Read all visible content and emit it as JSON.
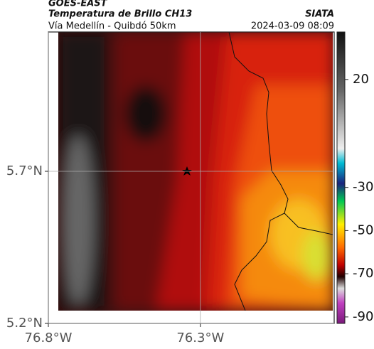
{
  "header": {
    "satellite": "GOES-EAST",
    "title": "Temperatura de Brillo CH13",
    "source": "SIATA",
    "subtitle": "Vía Medellín - Quibdó 50km",
    "datetime": "2024-03-09 08:09"
  },
  "map": {
    "xlim": [
      -76.8,
      -75.86
    ],
    "ylim": [
      5.2,
      6.158
    ],
    "xticks": [
      {
        "value": -76.8,
        "label": "76.8°W"
      },
      {
        "value": -76.3,
        "label": "76.3°W"
      }
    ],
    "yticks": [
      {
        "value": 5.2,
        "label": "5.2°N"
      },
      {
        "value": 5.7,
        "label": "5.7°N"
      }
    ],
    "grid": true
  },
  "colorbar": {
    "lim": [
      -93,
      42
    ],
    "ticks": [
      20,
      -30,
      -50,
      -70,
      -90
    ]
  }
}
